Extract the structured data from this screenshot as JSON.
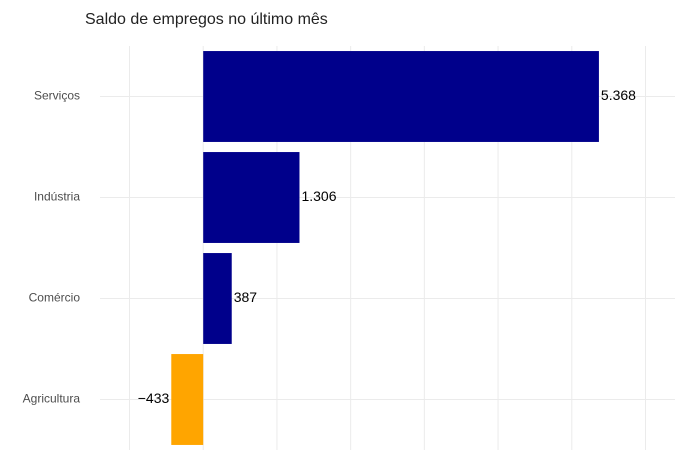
{
  "chart_data": {
    "type": "bar",
    "orientation": "horizontal",
    "title": "Saldo de empregos no último mês",
    "categories": [
      "Serviços",
      "Indústria",
      "Comércio",
      "Agricultura"
    ],
    "values": [
      5368,
      1306,
      387,
      -433
    ],
    "value_labels": [
      "5.368",
      "1.306",
      "387",
      "−433"
    ],
    "colors": [
      "#00008b",
      "#00008b",
      "#00008b",
      "#ffa500"
    ],
    "xlim": [
      -1400,
      6400
    ],
    "xticks": [
      -1000,
      0,
      1000,
      2000,
      3000,
      4000,
      5000,
      6000
    ],
    "grid": true
  }
}
